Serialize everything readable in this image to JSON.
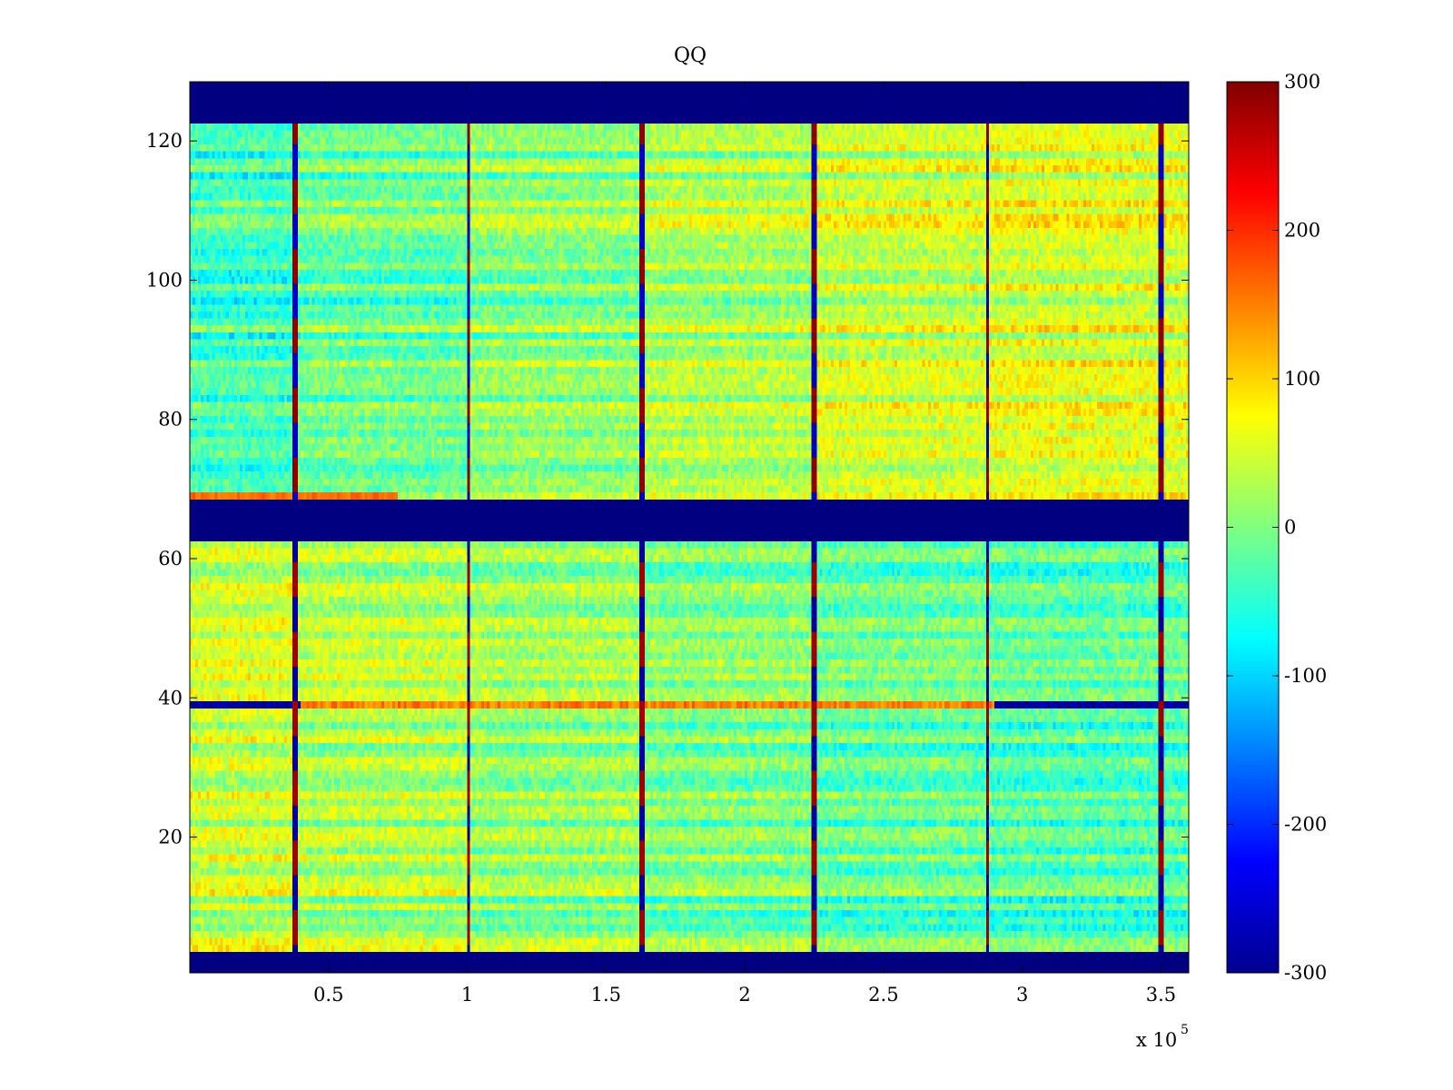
{
  "chart_data": {
    "type": "heatmap",
    "title": "QQ",
    "xlabel": "",
    "ylabel": "",
    "x_range": [
      0,
      360000
    ],
    "y_range": [
      0.5,
      128.5
    ],
    "x_ticks": [
      50000,
      100000,
      150000,
      200000,
      250000,
      300000,
      350000
    ],
    "x_tick_labels": [
      "0.5",
      "1",
      "1.5",
      "2",
      "2.5",
      "3",
      "3.5"
    ],
    "x_exponent_label": "x 10",
    "x_exponent_power": "5",
    "y_ticks": [
      20,
      40,
      60,
      80,
      100,
      120
    ],
    "y_tick_labels": [
      "20",
      "40",
      "60",
      "80",
      "100",
      "120"
    ],
    "colorbar": {
      "colormap": "jet",
      "range": [
        -300,
        300
      ],
      "ticks": [
        -300,
        -200,
        -100,
        0,
        100,
        200,
        300
      ],
      "tick_labels": [
        "-300",
        "-200",
        "-100",
        "0",
        "100",
        "200",
        "300"
      ]
    },
    "empty_rows": [
      [
        1,
        3
      ],
      [
        63,
        68
      ],
      [
        123,
        128
      ]
    ],
    "background_value": -300,
    "spike_columns_x": [
      38000,
      100500,
      163000,
      225000,
      287500,
      350000
    ],
    "band_x_breaks": [
      0,
      38000,
      100500,
      163000,
      225000,
      287500,
      350000,
      360000
    ],
    "upper_block_segment_means": [
      -40,
      -15,
      5,
      25,
      45,
      55,
      55
    ],
    "lower_block_segment_means": [
      40,
      25,
      10,
      -5,
      -20,
      -30,
      -30
    ],
    "notable_rows": [
      {
        "y": 39,
        "description_values": "strong negative (about -280) at x < 40000 and x > 290000, positive (about 150) between"
      },
      {
        "y": 69,
        "description_values": "strong positive (about 160) for x < 75000"
      }
    ],
    "grid": false,
    "legend": "none"
  }
}
